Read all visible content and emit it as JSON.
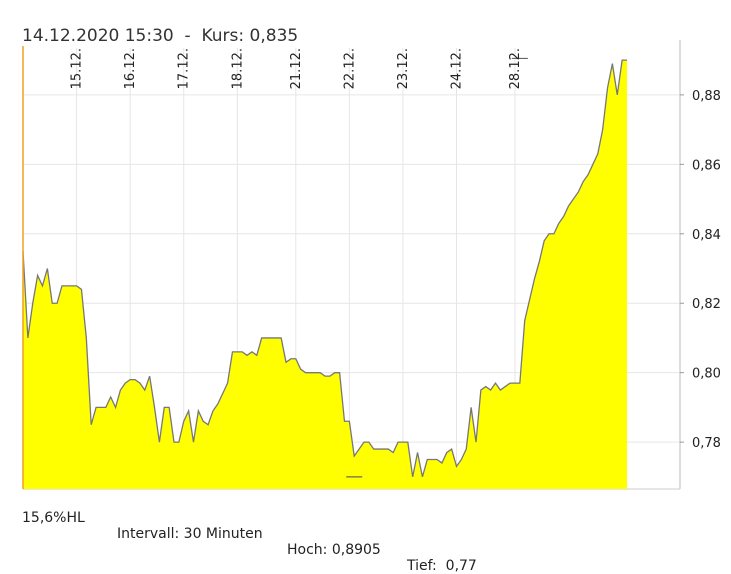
{
  "hover_readout": "14.12.2020 15:30  -  Kurs: 0,835",
  "footer": {
    "range_label": "15,6%HL",
    "interval_label": "Intervall: 30 Minuten",
    "high_label": "Hoch: 0,8905",
    "low_label": "Tief:  0,77"
  },
  "colors": {
    "fill": "#ffff00",
    "line": "#777777",
    "grid": "#e6e6e6",
    "cursor": "#f0a020"
  },
  "chart_data": {
    "type": "area",
    "title": "",
    "xlabel": "",
    "ylabel": "",
    "ylim": [
      0.7665,
      0.8935
    ],
    "y_ticks": [
      0.78,
      0.8,
      0.82,
      0.84,
      0.86,
      0.88
    ],
    "y_tick_labels": [
      "0,78",
      "0,80",
      "0,82",
      "0,84",
      "0,86",
      "0,88"
    ],
    "x_ticks": [
      {
        "label": "15.12.",
        "index": 11
      },
      {
        "label": "16.12.",
        "index": 22
      },
      {
        "label": "17.12.",
        "index": 33
      },
      {
        "label": "18.12.",
        "index": 44
      },
      {
        "label": "21.12.",
        "index": 56
      },
      {
        "label": "22.12.",
        "index": 67
      },
      {
        "label": "23.12.",
        "index": 78
      },
      {
        "label": "24.12.",
        "index": 89
      },
      {
        "label": "28.12.",
        "index": 101
      }
    ],
    "grid": true,
    "high_marker": {
      "index": 102,
      "value": 0.8905
    },
    "low_marker": {
      "index": 68,
      "value": 0.77
    },
    "series": [
      {
        "values": [
          0.835,
          0.81,
          0.82,
          0.828,
          0.825,
          0.83,
          0.82,
          0.82,
          0.825,
          0.825,
          0.825,
          0.825,
          0.824,
          0.81,
          0.785,
          0.79,
          0.79,
          0.79,
          0.793,
          0.79,
          0.795,
          0.797,
          0.798,
          0.798,
          0.797,
          0.795,
          0.799,
          0.79,
          0.78,
          0.79,
          0.79,
          0.78,
          0.78,
          0.786,
          0.789,
          0.78,
          0.789,
          0.786,
          0.785,
          0.789,
          0.791,
          0.794,
          0.797,
          0.806,
          0.806,
          0.806,
          0.805,
          0.806,
          0.805,
          0.81,
          0.81,
          0.81,
          0.81,
          0.81,
          0.803,
          0.804,
          0.804,
          0.801,
          0.8,
          0.8,
          0.8,
          0.8,
          0.799,
          0.799,
          0.8,
          0.8,
          0.786,
          0.786,
          0.776,
          0.778,
          0.78,
          0.78,
          0.778,
          0.778,
          0.778,
          0.778,
          0.777,
          0.78,
          0.78,
          0.78,
          0.77,
          0.777,
          0.77,
          0.775,
          0.775,
          0.775,
          0.774,
          0.777,
          0.778,
          0.773,
          0.775,
          0.778,
          0.79,
          0.78,
          0.795,
          0.796,
          0.795,
          0.797,
          0.795,
          0.796,
          0.797,
          0.797,
          0.797,
          0.815,
          0.821,
          0.827,
          0.832,
          0.838,
          0.84,
          0.84,
          0.843,
          0.845,
          0.848,
          0.85,
          0.852,
          0.855,
          0.857,
          0.86,
          0.863,
          0.87,
          0.882,
          0.889,
          0.88,
          0.89,
          0.89
        ]
      }
    ]
  }
}
